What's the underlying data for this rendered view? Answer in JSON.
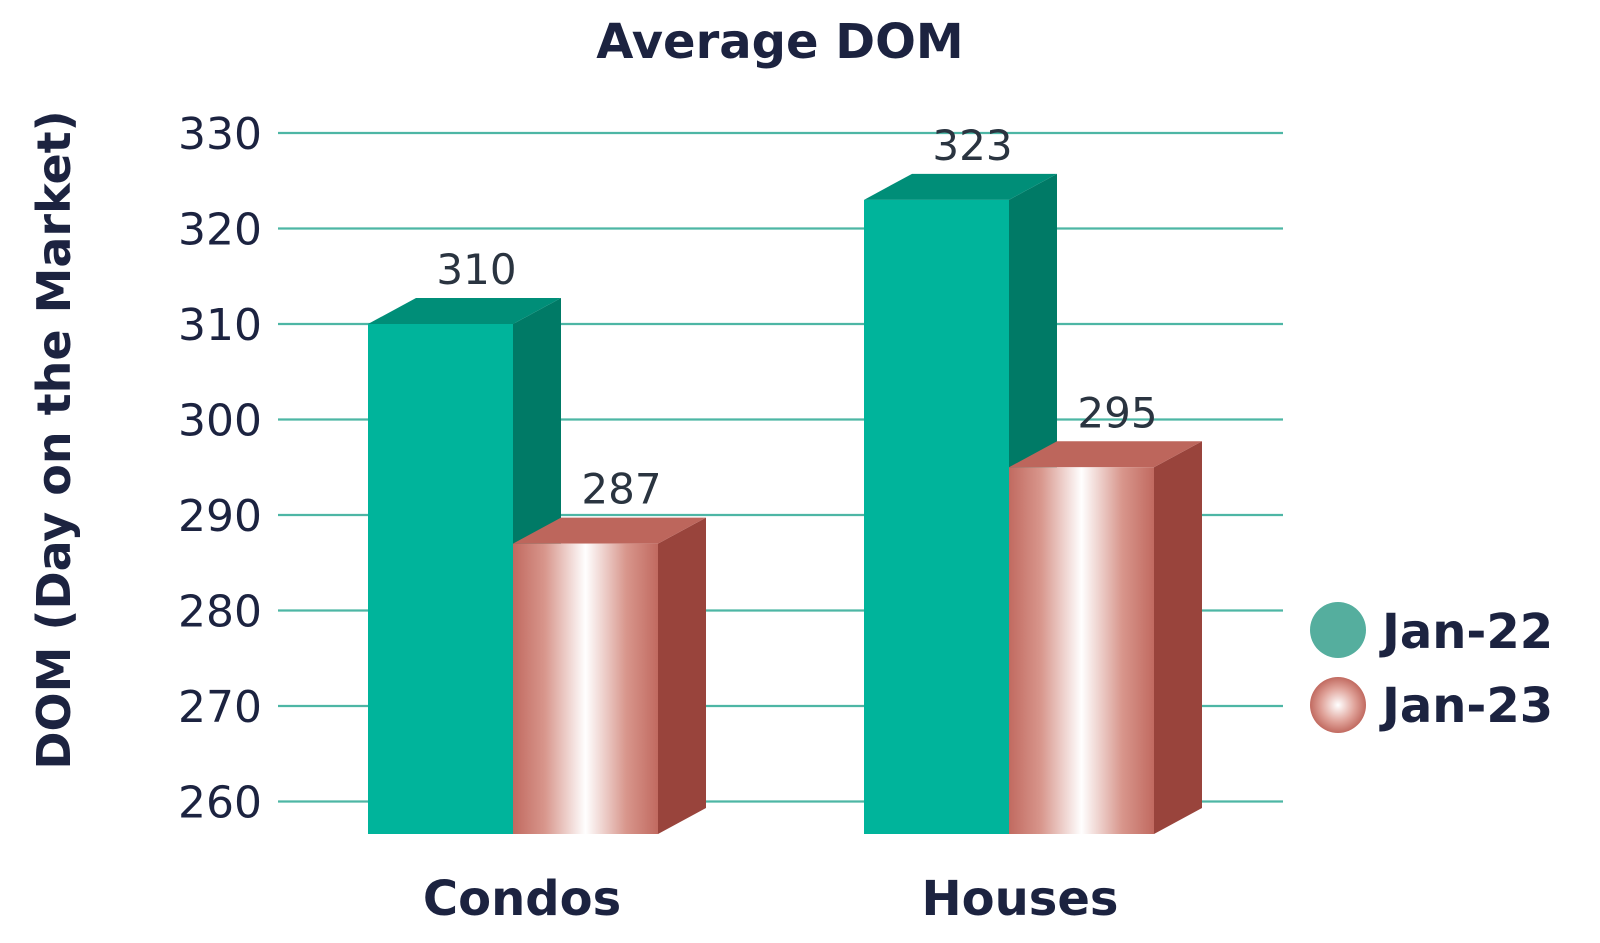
{
  "chart_data": {
    "type": "bar",
    "title": "Average DOM",
    "xlabel": "",
    "ylabel": "DOM (Day on the Market)",
    "categories": [
      "Condos",
      "Houses"
    ],
    "series": [
      {
        "name": "Jan-22",
        "values": [
          310,
          323
        ],
        "color": "#00b49b"
      },
      {
        "name": "Jan-23",
        "values": [
          287,
          295
        ],
        "color": "#c4726a"
      }
    ],
    "ylim": [
      256,
      330
    ],
    "yticks": [
      260,
      270,
      280,
      290,
      300,
      310,
      320,
      330
    ],
    "grid": true,
    "legend_position": "right",
    "style": "3d-bars",
    "gridline_color": "#4db6a5"
  }
}
